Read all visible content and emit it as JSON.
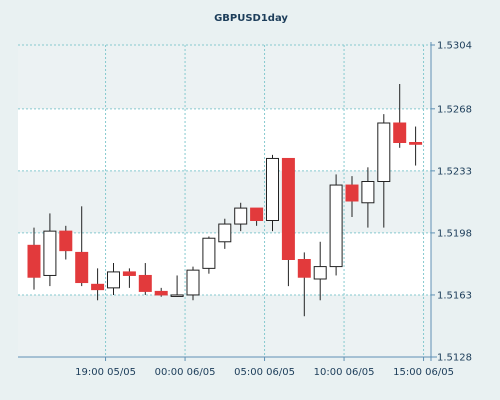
{
  "colors": {
    "background": "#e9f1f2",
    "plot_band_light": "#ffffff",
    "plot_band_dark": "#ecf2f3",
    "grid": "#86c9cf",
    "axis": "#5f90b4",
    "text": "#1c3d5a",
    "bullish_body": "#ffffff",
    "bearish_body": "#e23a3c",
    "wick": "#222222"
  },
  "chart_data": {
    "type": "candlestick",
    "title": "GBPUSD1day",
    "xlabel": "",
    "ylabel": "",
    "ylim": [
      1.5128,
      1.5304
    ],
    "y_ticks": [
      "1.5304",
      "1.5268",
      "1.5233",
      "1.5198",
      "1.5163",
      "1.5128"
    ],
    "x_ticks": [
      {
        "label": "19:00 05/05",
        "index": 4.5
      },
      {
        "label": "00:00 06/05",
        "index": 9.5
      },
      {
        "label": "05:00 06/05",
        "index": 14.5
      },
      {
        "label": "10:00 06/05",
        "index": 19.5
      },
      {
        "label": "15:00 06/05",
        "index": 24.5
      }
    ],
    "grid": true,
    "candles": [
      {
        "open": 1.5191,
        "high": 1.5201,
        "low": 1.5166,
        "close": 1.5173
      },
      {
        "open": 1.5174,
        "high": 1.5209,
        "low": 1.5168,
        "close": 1.5199
      },
      {
        "open": 1.5199,
        "high": 1.5202,
        "low": 1.5183,
        "close": 1.5188
      },
      {
        "open": 1.5187,
        "high": 1.5213,
        "low": 1.5168,
        "close": 1.517
      },
      {
        "open": 1.5169,
        "high": 1.5178,
        "low": 1.516,
        "close": 1.5166
      },
      {
        "open": 1.5167,
        "high": 1.5181,
        "low": 1.5163,
        "close": 1.5176
      },
      {
        "open": 1.5176,
        "high": 1.5178,
        "low": 1.5167,
        "close": 1.5174
      },
      {
        "open": 1.5174,
        "high": 1.5181,
        "low": 1.5163,
        "close": 1.5165
      },
      {
        "open": 1.5165,
        "high": 1.5167,
        "low": 1.5162,
        "close": 1.5163
      },
      {
        "open": 1.5163,
        "high": 1.5174,
        "low": 1.5163,
        "close": 1.5163
      },
      {
        "open": 1.5163,
        "high": 1.5179,
        "low": 1.516,
        "close": 1.5177
      },
      {
        "open": 1.5178,
        "high": 1.5196,
        "low": 1.5175,
        "close": 1.5195
      },
      {
        "open": 1.5193,
        "high": 1.5206,
        "low": 1.5189,
        "close": 1.5203
      },
      {
        "open": 1.5203,
        "high": 1.5215,
        "low": 1.5199,
        "close": 1.5212
      },
      {
        "open": 1.5212,
        "high": 1.5212,
        "low": 1.5202,
        "close": 1.5205
      },
      {
        "open": 1.5205,
        "high": 1.5242,
        "low": 1.5199,
        "close": 1.524
      },
      {
        "open": 1.524,
        "high": 1.524,
        "low": 1.5168,
        "close": 1.5183
      },
      {
        "open": 1.5183,
        "high": 1.5187,
        "low": 1.5151,
        "close": 1.5173
      },
      {
        "open": 1.5172,
        "high": 1.5193,
        "low": 1.516,
        "close": 1.5179
      },
      {
        "open": 1.5179,
        "high": 1.5231,
        "low": 1.5174,
        "close": 1.5225
      },
      {
        "open": 1.5225,
        "high": 1.523,
        "low": 1.5207,
        "close": 1.5216
      },
      {
        "open": 1.5215,
        "high": 1.5235,
        "low": 1.5201,
        "close": 1.5227
      },
      {
        "open": 1.5227,
        "high": 1.5265,
        "low": 1.5201,
        "close": 1.526
      },
      {
        "open": 1.526,
        "high": 1.5282,
        "low": 1.5246,
        "close": 1.5249
      },
      {
        "open": 1.5249,
        "high": 1.5258,
        "low": 1.5236,
        "close": 1.5248
      }
    ]
  }
}
